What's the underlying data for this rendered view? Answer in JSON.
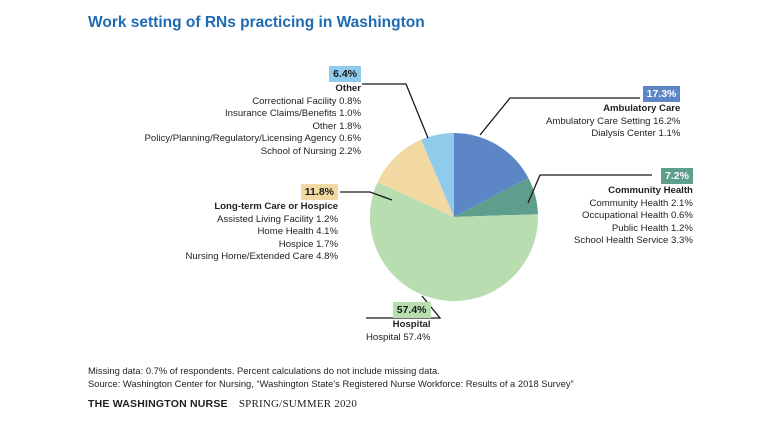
{
  "title": "Work setting of RNs practicing in Washington",
  "colors": {
    "title": "#1f6bb2",
    "ambulatory": "#5c86c5",
    "community": "#5e9e8c",
    "hospital": "#b7ddb1",
    "ltc": "#f2d9a2",
    "other": "#8fcbea",
    "leader": "#1a1a1a"
  },
  "chart_data": {
    "type": "pie",
    "title": "Work setting of RNs practicing in Washington",
    "start_angle_deg": 0,
    "direction": "clockwise",
    "slices": [
      {
        "key": "ambulatory",
        "label": "Ambulatory Care",
        "pct_label": "17.3%",
        "value": 17.3,
        "items": [
          "Ambulatory Care Setting 16.2%",
          "Dialysis Center 1.1%"
        ]
      },
      {
        "key": "community",
        "label": "Community Health",
        "pct_label": "7.2%",
        "value": 7.2,
        "items": [
          "Community Health 2.1%",
          "Occupational Health 0.6%",
          "Public Health 1.2%",
          "School Health Service 3.3%"
        ]
      },
      {
        "key": "hospital",
        "label": "Hospital",
        "pct_label": "57.4%",
        "value": 57.4,
        "items": [
          "Hospital 57.4%"
        ]
      },
      {
        "key": "ltc",
        "label": "Long-term Care or Hospice",
        "pct_label": "11.8%",
        "value": 11.8,
        "items": [
          "Assisted Living Facility 1.2%",
          "Home Health 4.1%",
          "Hospice 1.7%",
          "Nursing Home/Extended Care 4.8%"
        ]
      },
      {
        "key": "other",
        "label": "Other",
        "pct_label": "6.4%",
        "value": 6.4,
        "items": [
          "Correctional Facility 0.8%",
          "Insurance Claims/Benefits 1.0%",
          "Other 1.8%",
          "Policy/Planning/Regulatory/Licensing Agency 0.6%",
          "School of Nursing 2.2%"
        ]
      }
    ]
  },
  "notes": {
    "missing": "Missing data: 0.7% of respondents. Percent calculations do not include missing data.",
    "source": "Source: Washington Center for Nursing, “Washington State’s Registered Nurse Workforce: Results of a 2018 Survey”"
  },
  "footer": {
    "magazine": "THE WASHINGTON NURSE",
    "issue": "SPRING/SUMMER 2020"
  }
}
